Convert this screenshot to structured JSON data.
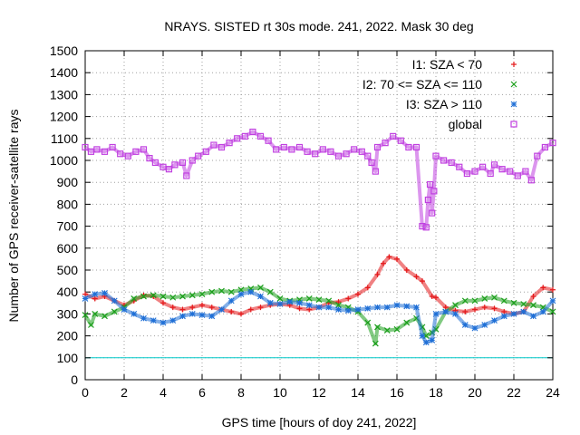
{
  "chart_data": {
    "type": "scatter",
    "title": "NRAYS. SISTED rt 30s mode. 241, 2022. Mask 30 deg",
    "xlabel": "GPS time [hours of doy 241, 2022]",
    "ylabel": "Number of GPS receiver-satellite rays",
    "xlim": [
      0,
      24
    ],
    "ylim": [
      0,
      1500
    ],
    "x_ticks": [
      "0",
      "2",
      "4",
      "6",
      "8",
      "10",
      "12",
      "14",
      "16",
      "18",
      "20",
      "22",
      "24"
    ],
    "y_ticks": [
      "0",
      "100",
      "200",
      "300",
      "400",
      "500",
      "600",
      "700",
      "800",
      "900",
      "1000",
      "1100",
      "1200",
      "1300",
      "1400",
      "1500"
    ],
    "grid": true,
    "legend_position": "top-right",
    "reference_line": {
      "y": 100,
      "color": "#00c8c8"
    },
    "series": [
      {
        "name": "I1: SZA < 70",
        "marker": "plus",
        "color": "#e41a1c",
        "points": [
          [
            0,
            390
          ],
          [
            0.5,
            370
          ],
          [
            1,
            380
          ],
          [
            1.5,
            360
          ],
          [
            2,
            340
          ],
          [
            2.5,
            360
          ],
          [
            3,
            385
          ],
          [
            3.5,
            380
          ],
          [
            4,
            350
          ],
          [
            4.5,
            330
          ],
          [
            5,
            320
          ],
          [
            5.5,
            330
          ],
          [
            6,
            340
          ],
          [
            6.5,
            330
          ],
          [
            7,
            320
          ],
          [
            7.5,
            310
          ],
          [
            8,
            300
          ],
          [
            8.5,
            320
          ],
          [
            9,
            330
          ],
          [
            9.5,
            340
          ],
          [
            10,
            345
          ],
          [
            10.5,
            340
          ],
          [
            11,
            325
          ],
          [
            11.5,
            320
          ],
          [
            12,
            330
          ],
          [
            12.5,
            350
          ],
          [
            13,
            355
          ],
          [
            13.5,
            370
          ],
          [
            14,
            390
          ],
          [
            14.5,
            420
          ],
          [
            15,
            480
          ],
          [
            15.3,
            530
          ],
          [
            15.6,
            560
          ],
          [
            16,
            550
          ],
          [
            16.5,
            500
          ],
          [
            17,
            470
          ],
          [
            17.3,
            450
          ],
          [
            17.8,
            380
          ],
          [
            18,
            375
          ],
          [
            18.5,
            330
          ],
          [
            19,
            315
          ],
          [
            19.5,
            310
          ],
          [
            20,
            320
          ],
          [
            20.5,
            330
          ],
          [
            21,
            325
          ],
          [
            21.5,
            310
          ],
          [
            22,
            300
          ],
          [
            22.5,
            310
          ],
          [
            23,
            380
          ],
          [
            23.5,
            420
          ],
          [
            24,
            410
          ]
        ]
      },
      {
        "name": "I2: 70 <= SZA <= 110",
        "marker": "cross",
        "color": "#1a9e1a",
        "points": [
          [
            0,
            295
          ],
          [
            0.3,
            250
          ],
          [
            0.5,
            300
          ],
          [
            1,
            290
          ],
          [
            1.5,
            310
          ],
          [
            2,
            330
          ],
          [
            2.5,
            370
          ],
          [
            3,
            380
          ],
          [
            3.5,
            385
          ],
          [
            4,
            380
          ],
          [
            4.5,
            375
          ],
          [
            5,
            380
          ],
          [
            5.5,
            385
          ],
          [
            6,
            390
          ],
          [
            6.5,
            400
          ],
          [
            7,
            405
          ],
          [
            7.5,
            400
          ],
          [
            8,
            410
          ],
          [
            8.5,
            415
          ],
          [
            9,
            420
          ],
          [
            9.5,
            400
          ],
          [
            10,
            370
          ],
          [
            10.5,
            360
          ],
          [
            11,
            365
          ],
          [
            11.5,
            370
          ],
          [
            12,
            365
          ],
          [
            12.5,
            360
          ],
          [
            13,
            340
          ],
          [
            13.5,
            330
          ],
          [
            14,
            310
          ],
          [
            14.5,
            260
          ],
          [
            14.9,
            165
          ],
          [
            15,
            240
          ],
          [
            15.5,
            225
          ],
          [
            16,
            230
          ],
          [
            16.5,
            260
          ],
          [
            17,
            280
          ],
          [
            17.3,
            240
          ],
          [
            17.5,
            200
          ],
          [
            17.8,
            215
          ],
          [
            18,
            230
          ],
          [
            18.5,
            310
          ],
          [
            19,
            340
          ],
          [
            19.5,
            360
          ],
          [
            20,
            360
          ],
          [
            20.5,
            370
          ],
          [
            21,
            375
          ],
          [
            21.5,
            360
          ],
          [
            22,
            350
          ],
          [
            22.5,
            345
          ],
          [
            23,
            340
          ],
          [
            23.5,
            330
          ],
          [
            24,
            310
          ]
        ]
      },
      {
        "name": "I3: SZA > 110",
        "marker": "star",
        "color": "#1f6fd6",
        "points": [
          [
            0,
            370
          ],
          [
            0.5,
            390
          ],
          [
            1,
            395
          ],
          [
            1.5,
            360
          ],
          [
            2,
            320
          ],
          [
            2.5,
            300
          ],
          [
            3,
            280
          ],
          [
            3.5,
            270
          ],
          [
            4,
            260
          ],
          [
            4.5,
            270
          ],
          [
            5,
            290
          ],
          [
            5.5,
            300
          ],
          [
            6,
            295
          ],
          [
            6.5,
            290
          ],
          [
            7,
            320
          ],
          [
            7.5,
            360
          ],
          [
            8,
            390
          ],
          [
            8.5,
            400
          ],
          [
            9,
            380
          ],
          [
            9.5,
            350
          ],
          [
            10,
            345
          ],
          [
            10.5,
            355
          ],
          [
            11,
            350
          ],
          [
            11.5,
            340
          ],
          [
            12,
            330
          ],
          [
            12.5,
            330
          ],
          [
            13,
            320
          ],
          [
            13.5,
            315
          ],
          [
            14,
            320
          ],
          [
            14.5,
            325
          ],
          [
            15,
            330
          ],
          [
            15.5,
            330
          ],
          [
            16,
            340
          ],
          [
            16.5,
            335
          ],
          [
            17,
            330
          ],
          [
            17.3,
            200
          ],
          [
            17.5,
            170
          ],
          [
            17.8,
            180
          ],
          [
            18,
            300
          ],
          [
            18.5,
            310
          ],
          [
            19,
            300
          ],
          [
            19.5,
            250
          ],
          [
            20,
            235
          ],
          [
            20.5,
            250
          ],
          [
            21,
            270
          ],
          [
            21.5,
            290
          ],
          [
            22,
            300
          ],
          [
            22.5,
            310
          ],
          [
            23,
            290
          ],
          [
            23.5,
            310
          ],
          [
            24,
            360
          ]
        ]
      },
      {
        "name": "global",
        "marker": "square",
        "color": "#c040e0",
        "points": [
          [
            0,
            1060
          ],
          [
            0.3,
            1040
          ],
          [
            0.6,
            1050
          ],
          [
            1,
            1040
          ],
          [
            1.4,
            1060
          ],
          [
            1.8,
            1030
          ],
          [
            2.2,
            1020
          ],
          [
            2.6,
            1040
          ],
          [
            3,
            1050
          ],
          [
            3.3,
            1010
          ],
          [
            3.6,
            990
          ],
          [
            4,
            970
          ],
          [
            4.3,
            960
          ],
          [
            4.6,
            980
          ],
          [
            5,
            990
          ],
          [
            5.2,
            930
          ],
          [
            5.5,
            1000
          ],
          [
            5.8,
            1020
          ],
          [
            6.2,
            1040
          ],
          [
            6.6,
            1070
          ],
          [
            7,
            1060
          ],
          [
            7.4,
            1080
          ],
          [
            7.8,
            1100
          ],
          [
            8.2,
            1110
          ],
          [
            8.6,
            1130
          ],
          [
            9,
            1110
          ],
          [
            9.4,
            1090
          ],
          [
            9.8,
            1050
          ],
          [
            10.2,
            1060
          ],
          [
            10.6,
            1050
          ],
          [
            11,
            1060
          ],
          [
            11.4,
            1040
          ],
          [
            11.8,
            1030
          ],
          [
            12.2,
            1050
          ],
          [
            12.6,
            1040
          ],
          [
            13,
            1020
          ],
          [
            13.4,
            1030
          ],
          [
            13.8,
            1050
          ],
          [
            14.2,
            1040
          ],
          [
            14.5,
            1020
          ],
          [
            14.7,
            990
          ],
          [
            14.9,
            950
          ],
          [
            15,
            1060
          ],
          [
            15.4,
            1080
          ],
          [
            15.8,
            1110
          ],
          [
            16.2,
            1090
          ],
          [
            16.6,
            1060
          ],
          [
            17,
            1060
          ],
          [
            17.3,
            700
          ],
          [
            17.5,
            695
          ],
          [
            17.6,
            820
          ],
          [
            17.7,
            890
          ],
          [
            17.8,
            760
          ],
          [
            17.9,
            860
          ],
          [
            18,
            1020
          ],
          [
            18.4,
            1000
          ],
          [
            18.8,
            990
          ],
          [
            19.2,
            970
          ],
          [
            19.6,
            940
          ],
          [
            20,
            950
          ],
          [
            20.4,
            970
          ],
          [
            20.8,
            940
          ],
          [
            21,
            980
          ],
          [
            21.4,
            960
          ],
          [
            21.8,
            950
          ],
          [
            22.2,
            930
          ],
          [
            22.6,
            950
          ],
          [
            22.9,
            910
          ],
          [
            23.2,
            1020
          ],
          [
            23.6,
            1060
          ],
          [
            24,
            1080
          ]
        ]
      }
    ]
  }
}
